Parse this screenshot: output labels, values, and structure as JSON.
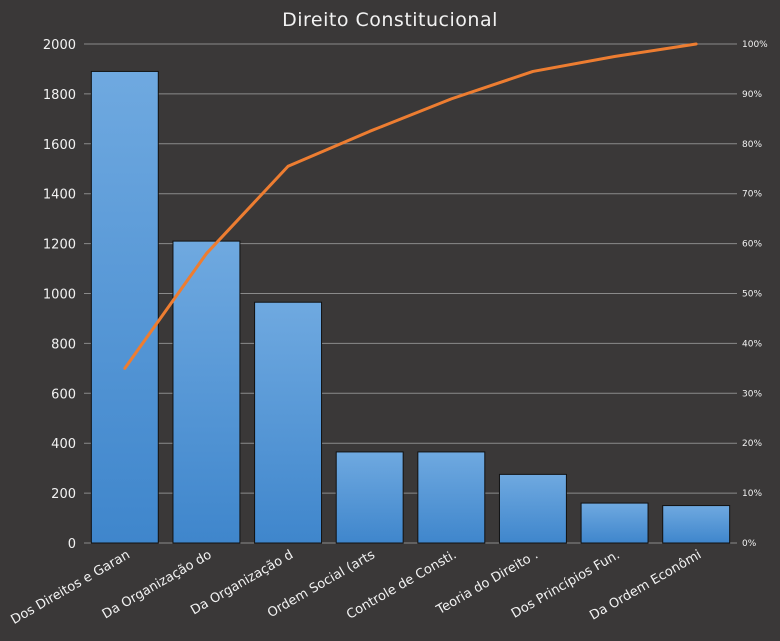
{
  "chart_data": {
    "type": "bar",
    "title": "Direito Constitucional",
    "categories": [
      "Dos Direitos e Garan",
      "Da Organização do",
      "Da Organização d",
      "Ordem Social (arts",
      "Controle de Consti.",
      "Teoria do Direito  .",
      "Dos Princípios Fun.",
      "Da Ordem Econômi"
    ],
    "series": [
      {
        "type": "bar",
        "axis": "left",
        "values": [
          1890,
          1210,
          965,
          365,
          365,
          275,
          160,
          150
        ],
        "color": "#5b9bd5"
      },
      {
        "type": "line",
        "axis": "right",
        "values": [
          35,
          58,
          75.5,
          82.5,
          89,
          94.5,
          97.5,
          100
        ],
        "color": "#ed7d31"
      }
    ],
    "ylim": [
      0,
      2000
    ],
    "y_ticks": [
      "0",
      "200",
      "400",
      "600",
      "800",
      "1000",
      "1200",
      "1400",
      "1600",
      "1800",
      "2000"
    ],
    "y2lim": [
      0,
      100
    ],
    "y2_ticks": [
      "0%",
      "10%",
      "20%",
      "30%",
      "40%",
      "50%",
      "60%",
      "70%",
      "80%",
      "90%",
      "100%"
    ],
    "grid": true,
    "legend": "none"
  }
}
